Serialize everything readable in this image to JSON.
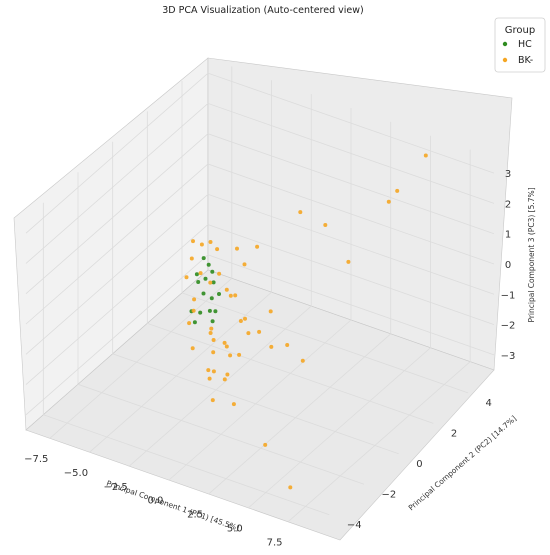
{
  "chart_data": {
    "type": "scatter3d",
    "title": "3D PCA Visualization (Auto-centered view)",
    "xlabel": "Principal Component 1 (PC1) [45.5%]",
    "ylabel": "Principal Component 2 (PC2) [14.7%]",
    "zlabel": "Principal Component 3 (PC3) [5.7%]",
    "x_ticks": [
      "−7.5",
      "−5.0",
      "−2.5",
      "0.0",
      "2.5",
      "5.0",
      "7.5"
    ],
    "y_ticks": [
      "−4",
      "−2",
      "0",
      "2",
      "4"
    ],
    "z_ticks": [
      "−3",
      "−2",
      "−1",
      "0",
      "1",
      "2",
      "3"
    ],
    "xlim": [
      -9,
      9
    ],
    "ylim": [
      -5,
      5.5
    ],
    "zlim": [
      -3.5,
      3.5
    ],
    "legend": {
      "title": "Group",
      "position": "top-right",
      "entries": [
        {
          "name": "HC",
          "color": "#2e8b1f"
        },
        {
          "name": "BK-",
          "color": "#f5a623"
        }
      ]
    },
    "series": [
      {
        "name": "HC",
        "color": "#2e8b1f",
        "points": [
          [
            -3.6,
            0.3,
            0.5
          ],
          [
            -3.5,
            0.5,
            0.2
          ],
          [
            -3.7,
            0.0,
            0.1
          ],
          [
            -3.4,
            -0.2,
            0.0
          ],
          [
            -3.6,
            0.8,
            -0.2
          ],
          [
            -3.3,
            0.6,
            -0.4
          ],
          [
            -3.5,
            0.2,
            -0.6
          ],
          [
            -3.6,
            -0.4,
            -0.9
          ],
          [
            -3.2,
            0.4,
            -0.8
          ],
          [
            -3.4,
            1.0,
            -1.0
          ],
          [
            -3.6,
            0.1,
            -1.2
          ],
          [
            -3.5,
            -0.3,
            -1.3
          ],
          [
            -3.1,
            0.2,
            -1.1
          ],
          [
            -2.6,
            -0.1,
            -1.2
          ],
          [
            -3.3,
            0.7,
            -1.4
          ],
          [
            -3.7,
            0.5,
            -0.3
          ]
        ]
      },
      {
        "name": "BK-",
        "color": "#f5a623",
        "points": [
          [
            -3.4,
            -0.5,
            1.5
          ],
          [
            -3.6,
            0.2,
            1.0
          ],
          [
            -3.5,
            0.6,
            0.9
          ],
          [
            -3.8,
            -0.2,
            0.7
          ],
          [
            -3.3,
            0.8,
            0.6
          ],
          [
            -3.7,
            -0.6,
            0.3
          ],
          [
            -3.9,
            0.4,
            -0.1
          ],
          [
            -3.5,
            1.1,
            -0.4
          ],
          [
            -2.2,
            -0.6,
            0.4
          ],
          [
            -1.5,
            0.3,
            1.2
          ],
          [
            -1.0,
            1.0,
            1.0
          ],
          [
            -3.0,
            -0.8,
            -0.2
          ],
          [
            -2.8,
            0.9,
            -0.7
          ],
          [
            -3.1,
            -1.0,
            -0.9
          ],
          [
            -2.0,
            0.4,
            -0.5
          ],
          [
            -2.6,
            1.2,
            -1.0
          ],
          [
            -2.4,
            -0.4,
            -1.4
          ],
          [
            -1.8,
            0.8,
            -1.5
          ],
          [
            -2.9,
            0.1,
            -1.6
          ],
          [
            -2.2,
            1.4,
            -1.8
          ],
          [
            -3.2,
            -0.7,
            -1.9
          ],
          [
            -1.6,
            -0.2,
            -1.8
          ],
          [
            -1.0,
            0.5,
            -1.6
          ],
          [
            -2.5,
            0.5,
            -2.2
          ],
          [
            -2.0,
            -0.9,
            -2.3
          ],
          [
            -1.2,
            1.3,
            -2.0
          ],
          [
            -3.0,
            0.3,
            -2.5
          ],
          [
            -2.3,
            -0.3,
            -2.7
          ],
          [
            -1.7,
            0.6,
            -2.5
          ],
          [
            -2.7,
            1.0,
            -2.9
          ],
          [
            -1.4,
            -0.5,
            -2.7
          ],
          [
            -2.0,
            0.2,
            -3.0
          ],
          [
            -3.3,
            0.6,
            -2.3
          ],
          [
            -0.8,
            1.6,
            -1.4
          ],
          [
            1.5,
            1.2,
            2.5
          ],
          [
            2.2,
            2.0,
            1.8
          ],
          [
            4.2,
            1.5,
            1.2
          ],
          [
            4.0,
            4.5,
            2.0
          ],
          [
            1.2,
            -0.2,
            -1.3
          ],
          [
            -0.2,
            2.0,
            -2.6
          ],
          [
            1.0,
            1.8,
            -2.8
          ],
          [
            -0.5,
            -0.8,
            -3.2
          ],
          [
            3.0,
            -2.2,
            -3.2
          ],
          [
            6.0,
            -3.5,
            -3.4
          ],
          [
            6.2,
            2.0,
            3.3
          ],
          [
            5.8,
            4.5,
            3.5
          ],
          [
            -2.6,
            -1.2,
            -0.3
          ],
          [
            -1.9,
            1.1,
            0.2
          ],
          [
            -2.9,
            0.0,
            -3.2
          ],
          [
            -1.5,
            -1.1,
            -3.1
          ]
        ]
      }
    ]
  }
}
